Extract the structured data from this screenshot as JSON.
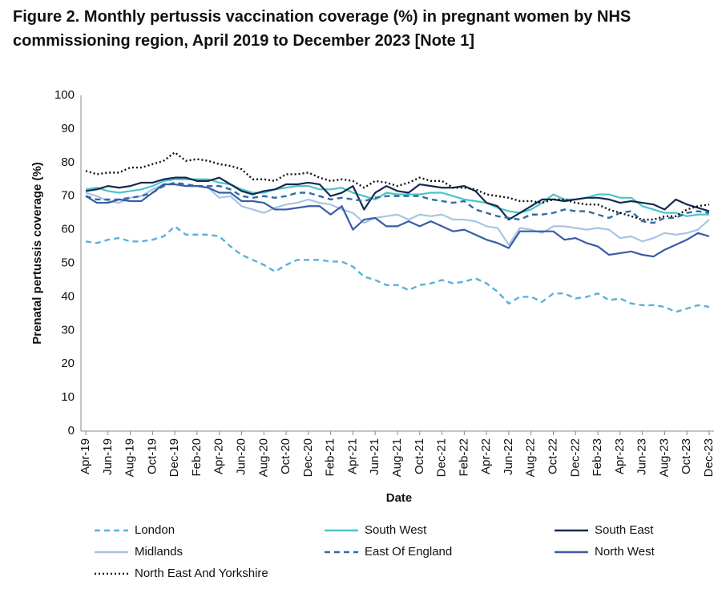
{
  "chart_data": {
    "type": "line",
    "title": "Figure 2. Monthly pertussis vaccination coverage (%) in pregnant women by NHS commissioning region, April 2019 to December 2023 [Note 1]",
    "xlabel": "Date",
    "ylabel": "Prenatal pertussis coverage (%)",
    "categories": [
      "Apr-19",
      null,
      "Jun-19",
      null,
      "Aug-19",
      null,
      "Oct-19",
      null,
      "Dec-19",
      null,
      "Feb-20",
      null,
      "Apr-20",
      null,
      "Jun-20",
      null,
      "Aug-20",
      null,
      "Oct-20",
      null,
      "Dec-20",
      null,
      "Feb-21",
      null,
      "Apr-21",
      null,
      "Jun-21",
      null,
      "Aug-21",
      null,
      "Oct-21",
      null,
      "Dec-21",
      null,
      "Feb-22",
      null,
      "Apr-22",
      null,
      "Jun-22",
      null,
      "Aug-22",
      null,
      "Oct-22",
      null,
      "Dec-22",
      null,
      "Feb-23",
      null,
      "Apr-23",
      null,
      "Jun-23",
      null,
      "Aug-23",
      null,
      "Oct-23",
      null,
      "Dec-23"
    ],
    "ylim": [
      0,
      100
    ],
    "yticks": [
      0,
      10,
      20,
      30,
      40,
      50,
      60,
      70,
      80,
      90,
      100
    ],
    "grid": false,
    "legend": "bottom",
    "series": [
      {
        "name": "London",
        "color": "#5ab0dc",
        "dash": "dashed",
        "values": [
          56.5,
          56,
          57,
          57.5,
          56.5,
          56.5,
          57,
          58,
          61,
          58.5,
          58.5,
          58.5,
          58,
          55,
          52.5,
          51,
          49.5,
          47.5,
          49.5,
          51,
          51,
          51,
          50.5,
          50.5,
          49,
          46,
          45,
          43.5,
          43.5,
          42,
          43.5,
          44,
          45,
          44,
          44.5,
          45.5,
          44,
          41.5,
          38,
          40,
          40,
          38.5,
          41,
          41,
          39.5,
          40,
          41,
          39,
          39.5,
          38,
          37.5,
          37.5,
          37,
          35.5,
          36.5,
          37.5,
          37
        ]
      },
      {
        "name": "South West",
        "color": "#4cc4c8",
        "dash": "solid",
        "values": [
          72,
          72.5,
          71.5,
          71,
          71.5,
          72,
          73,
          74.5,
          75,
          75,
          75,
          75,
          74,
          73.5,
          72,
          71,
          71,
          72,
          72.5,
          73,
          73,
          72,
          72,
          72.5,
          71,
          70,
          69,
          71,
          70.5,
          70.5,
          70.5,
          71,
          71,
          70,
          69,
          68.5,
          68,
          66.5,
          65.5,
          65,
          66,
          68,
          70.5,
          69,
          69,
          69.5,
          70.5,
          70.5,
          69.5,
          69.5,
          67,
          66,
          65,
          65,
          64,
          64.5,
          64.5
        ]
      },
      {
        "name": "South East",
        "color": "#152a4e",
        "dash": "solid",
        "values": [
          71.5,
          72,
          73,
          72.5,
          73,
          74,
          74,
          75,
          75.5,
          75.5,
          74.5,
          74.5,
          75.5,
          73.5,
          71.5,
          70.5,
          71.5,
          72,
          73.5,
          73.5,
          74,
          73.5,
          70,
          71,
          73,
          66,
          71,
          73,
          71.5,
          71,
          73.5,
          73,
          72.5,
          72.5,
          73,
          71.5,
          68,
          67,
          63,
          65,
          67,
          69,
          69,
          68.5,
          69,
          69.5,
          69.5,
          69,
          68,
          68.5,
          68,
          67.5,
          66,
          69,
          67.5,
          66.5,
          65.5
        ]
      },
      {
        "name": "Midlands",
        "color": "#a8c4e6",
        "dash": "solid",
        "values": [
          71,
          70,
          68.5,
          68,
          69.5,
          70,
          72,
          73.5,
          73.5,
          73,
          73,
          72.5,
          69.5,
          70,
          67,
          66,
          65,
          66.5,
          67.5,
          68,
          69,
          68,
          67.5,
          66,
          65,
          62,
          63.5,
          64,
          64.5,
          63,
          64.5,
          64,
          64.5,
          63,
          63,
          62.5,
          61,
          60.5,
          55.5,
          60.5,
          60,
          59,
          61,
          61,
          60.5,
          60,
          60.5,
          60,
          57.5,
          58,
          56.5,
          57.5,
          59,
          58.5,
          59,
          60,
          63
        ]
      },
      {
        "name": "East Of England",
        "color": "#2e6da6",
        "dash": "dashed",
        "values": [
          70,
          69,
          69,
          69,
          69.5,
          70,
          71,
          73,
          74,
          73.5,
          73,
          73,
          73,
          72,
          70,
          69.5,
          70,
          69.5,
          70,
          71,
          71,
          70,
          69,
          69.5,
          69,
          68.5,
          69.5,
          70,
          70,
          70,
          70,
          69,
          68.5,
          68,
          68.5,
          66,
          65,
          64,
          63.5,
          63,
          64.5,
          64.5,
          65,
          66,
          65.5,
          65.5,
          64.5,
          63.5,
          65,
          65.5,
          62.5,
          62,
          63.5,
          63.5,
          65,
          65.5,
          65
        ]
      },
      {
        "name": "North West",
        "color": "#3a5ca6",
        "dash": "solid",
        "values": [
          70,
          68,
          68,
          69,
          68.5,
          68.5,
          71,
          73.5,
          73.5,
          73,
          73,
          72.5,
          71,
          71,
          68.5,
          68.5,
          68,
          66,
          66,
          66.5,
          67,
          67,
          64.5,
          67,
          60,
          63,
          63.5,
          61,
          61,
          62.5,
          61,
          62.5,
          61,
          59.5,
          60,
          58.5,
          57,
          56,
          54.5,
          59.5,
          59.5,
          59.5,
          59.5,
          57,
          57.5,
          56,
          55,
          52.5,
          53,
          53.5,
          52.5,
          52,
          54,
          55.5,
          57,
          59,
          58
        ]
      },
      {
        "name": "North East And Yorkshire",
        "color": "#111111",
        "dash": "dotted",
        "values": [
          77.5,
          76.5,
          77,
          77,
          78.5,
          78.5,
          79.5,
          80.5,
          83,
          80.5,
          81,
          80.5,
          79.5,
          79,
          78,
          75,
          75,
          74.5,
          76.5,
          76.5,
          77,
          75.5,
          74.5,
          75,
          74.5,
          72.5,
          74.5,
          74,
          73,
          74,
          75.5,
          74.5,
          74.5,
          72.5,
          72.5,
          72,
          70.5,
          70,
          69.5,
          68.5,
          68.5,
          68,
          69,
          69,
          68,
          67.5,
          67.5,
          66,
          65,
          64,
          63,
          63,
          64,
          64,
          66,
          67,
          67.5
        ]
      }
    ]
  }
}
